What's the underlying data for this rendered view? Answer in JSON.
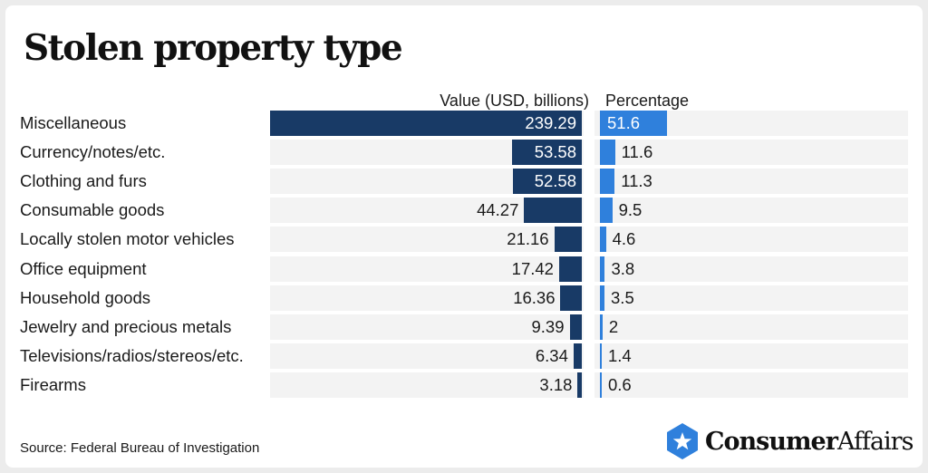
{
  "title": "Stolen property type",
  "source": "Source: Federal Bureau of Investigation",
  "logo": {
    "bold": "Consumer",
    "regular": "Affairs",
    "icon": "star-hexagon-icon",
    "color": "#2f80dc"
  },
  "colors": {
    "value_bar": "#183a66",
    "pct_bar": "#2f80dc",
    "track": "#f3f3f3"
  },
  "chart_data": {
    "type": "bar",
    "orientation": "horizontal",
    "categories": [
      "Miscellaneous",
      "Currency/notes/etc.",
      "Clothing and furs",
      "Consumable goods",
      "Locally stolen motor vehicles",
      "Office equipment",
      "Household goods",
      "Jewelry and precious metals",
      "Televisions/radios/stereos/etc.",
      "Firearms"
    ],
    "series": [
      {
        "name": "Value (USD, billions)",
        "values": [
          239.29,
          53.58,
          52.58,
          44.27,
          21.16,
          17.42,
          16.36,
          9.39,
          6.34,
          3.18
        ],
        "labels": [
          "239.29",
          "53.58",
          "52.58",
          "44.27",
          "21.16",
          "17.42",
          "16.36",
          "9.39",
          "6.34",
          "3.18"
        ]
      },
      {
        "name": "Percentage",
        "values": [
          51.6,
          11.6,
          11.3,
          9.5,
          4.6,
          3.8,
          3.5,
          2,
          1.4,
          0.6
        ],
        "labels": [
          "51.6",
          "11.6",
          "11.3",
          "9.5",
          "4.6",
          "3.8",
          "3.5",
          "2",
          "1.4",
          "0.6"
        ]
      }
    ],
    "title": "Stolen property type",
    "xlabel": "",
    "ylabel": "",
    "legend": "none",
    "grid": false
  }
}
